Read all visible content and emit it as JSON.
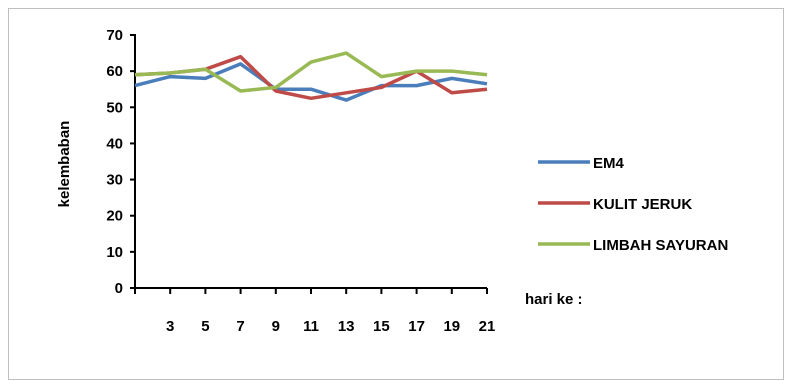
{
  "chart_data": {
    "type": "line",
    "title": "",
    "xlabel": "hari ke :",
    "ylabel": "kelembaban",
    "ylim": [
      0,
      70
    ],
    "yticks": [
      "0",
      "10",
      "20",
      "30",
      "40",
      "50",
      "60",
      "70"
    ],
    "x": [
      1,
      3,
      5,
      7,
      9,
      11,
      13,
      15,
      17,
      19,
      21
    ],
    "xtick_labels": [
      "3",
      "5",
      "7",
      "9",
      "11",
      "13",
      "15",
      "17",
      "19",
      "21"
    ],
    "grid": false,
    "legend": "right",
    "series": [
      {
        "name": "EM4",
        "color": "#4a7ebb",
        "values": [
          56,
          58.5,
          58,
          62,
          55,
          55,
          52,
          56,
          56,
          58,
          56.5
        ]
      },
      {
        "name": "KULIT JERUK",
        "color": "#be4b48",
        "values": [
          59,
          59.5,
          60.5,
          64,
          54.5,
          52.5,
          54,
          55.5,
          60,
          54,
          55
        ]
      },
      {
        "name": "LIMBAH SAYURAN",
        "color": "#98b954",
        "values": [
          59,
          59.5,
          60.5,
          54.5,
          55.5,
          62.5,
          65,
          58.5,
          60,
          60,
          59
        ]
      }
    ]
  }
}
